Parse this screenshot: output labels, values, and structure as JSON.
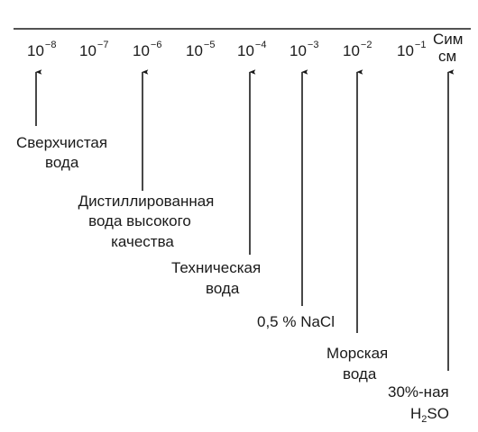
{
  "scale": {
    "ticks": [
      {
        "base": "10",
        "exponent": "−8"
      },
      {
        "base": "10",
        "exponent": "−7"
      },
      {
        "base": "10",
        "exponent": "−6"
      },
      {
        "base": "10",
        "exponent": "−5"
      },
      {
        "base": "10",
        "exponent": "−4"
      },
      {
        "base": "10",
        "exponent": "−3"
      },
      {
        "base": "10",
        "exponent": "−2"
      },
      {
        "base": "10",
        "exponent": "−1"
      }
    ],
    "unit": [
      "Сим",
      "см"
    ]
  },
  "labels": [
    {
      "lines": [
        "Сверхчистая",
        "вода"
      ]
    },
    {
      "lines": [
        "Дистиллированная",
        "вода высокого",
        "качества"
      ]
    },
    {
      "lines": [
        "Техническая",
        "вода"
      ]
    },
    {
      "lines": [
        "0,5 % NaCl"
      ]
    },
    {
      "lines": [
        "Морская",
        "вода"
      ]
    },
    {
      "lines": [
        "30%-ная"
      ],
      "formula": [
        "H",
        "2",
        "SO"
      ]
    }
  ]
}
